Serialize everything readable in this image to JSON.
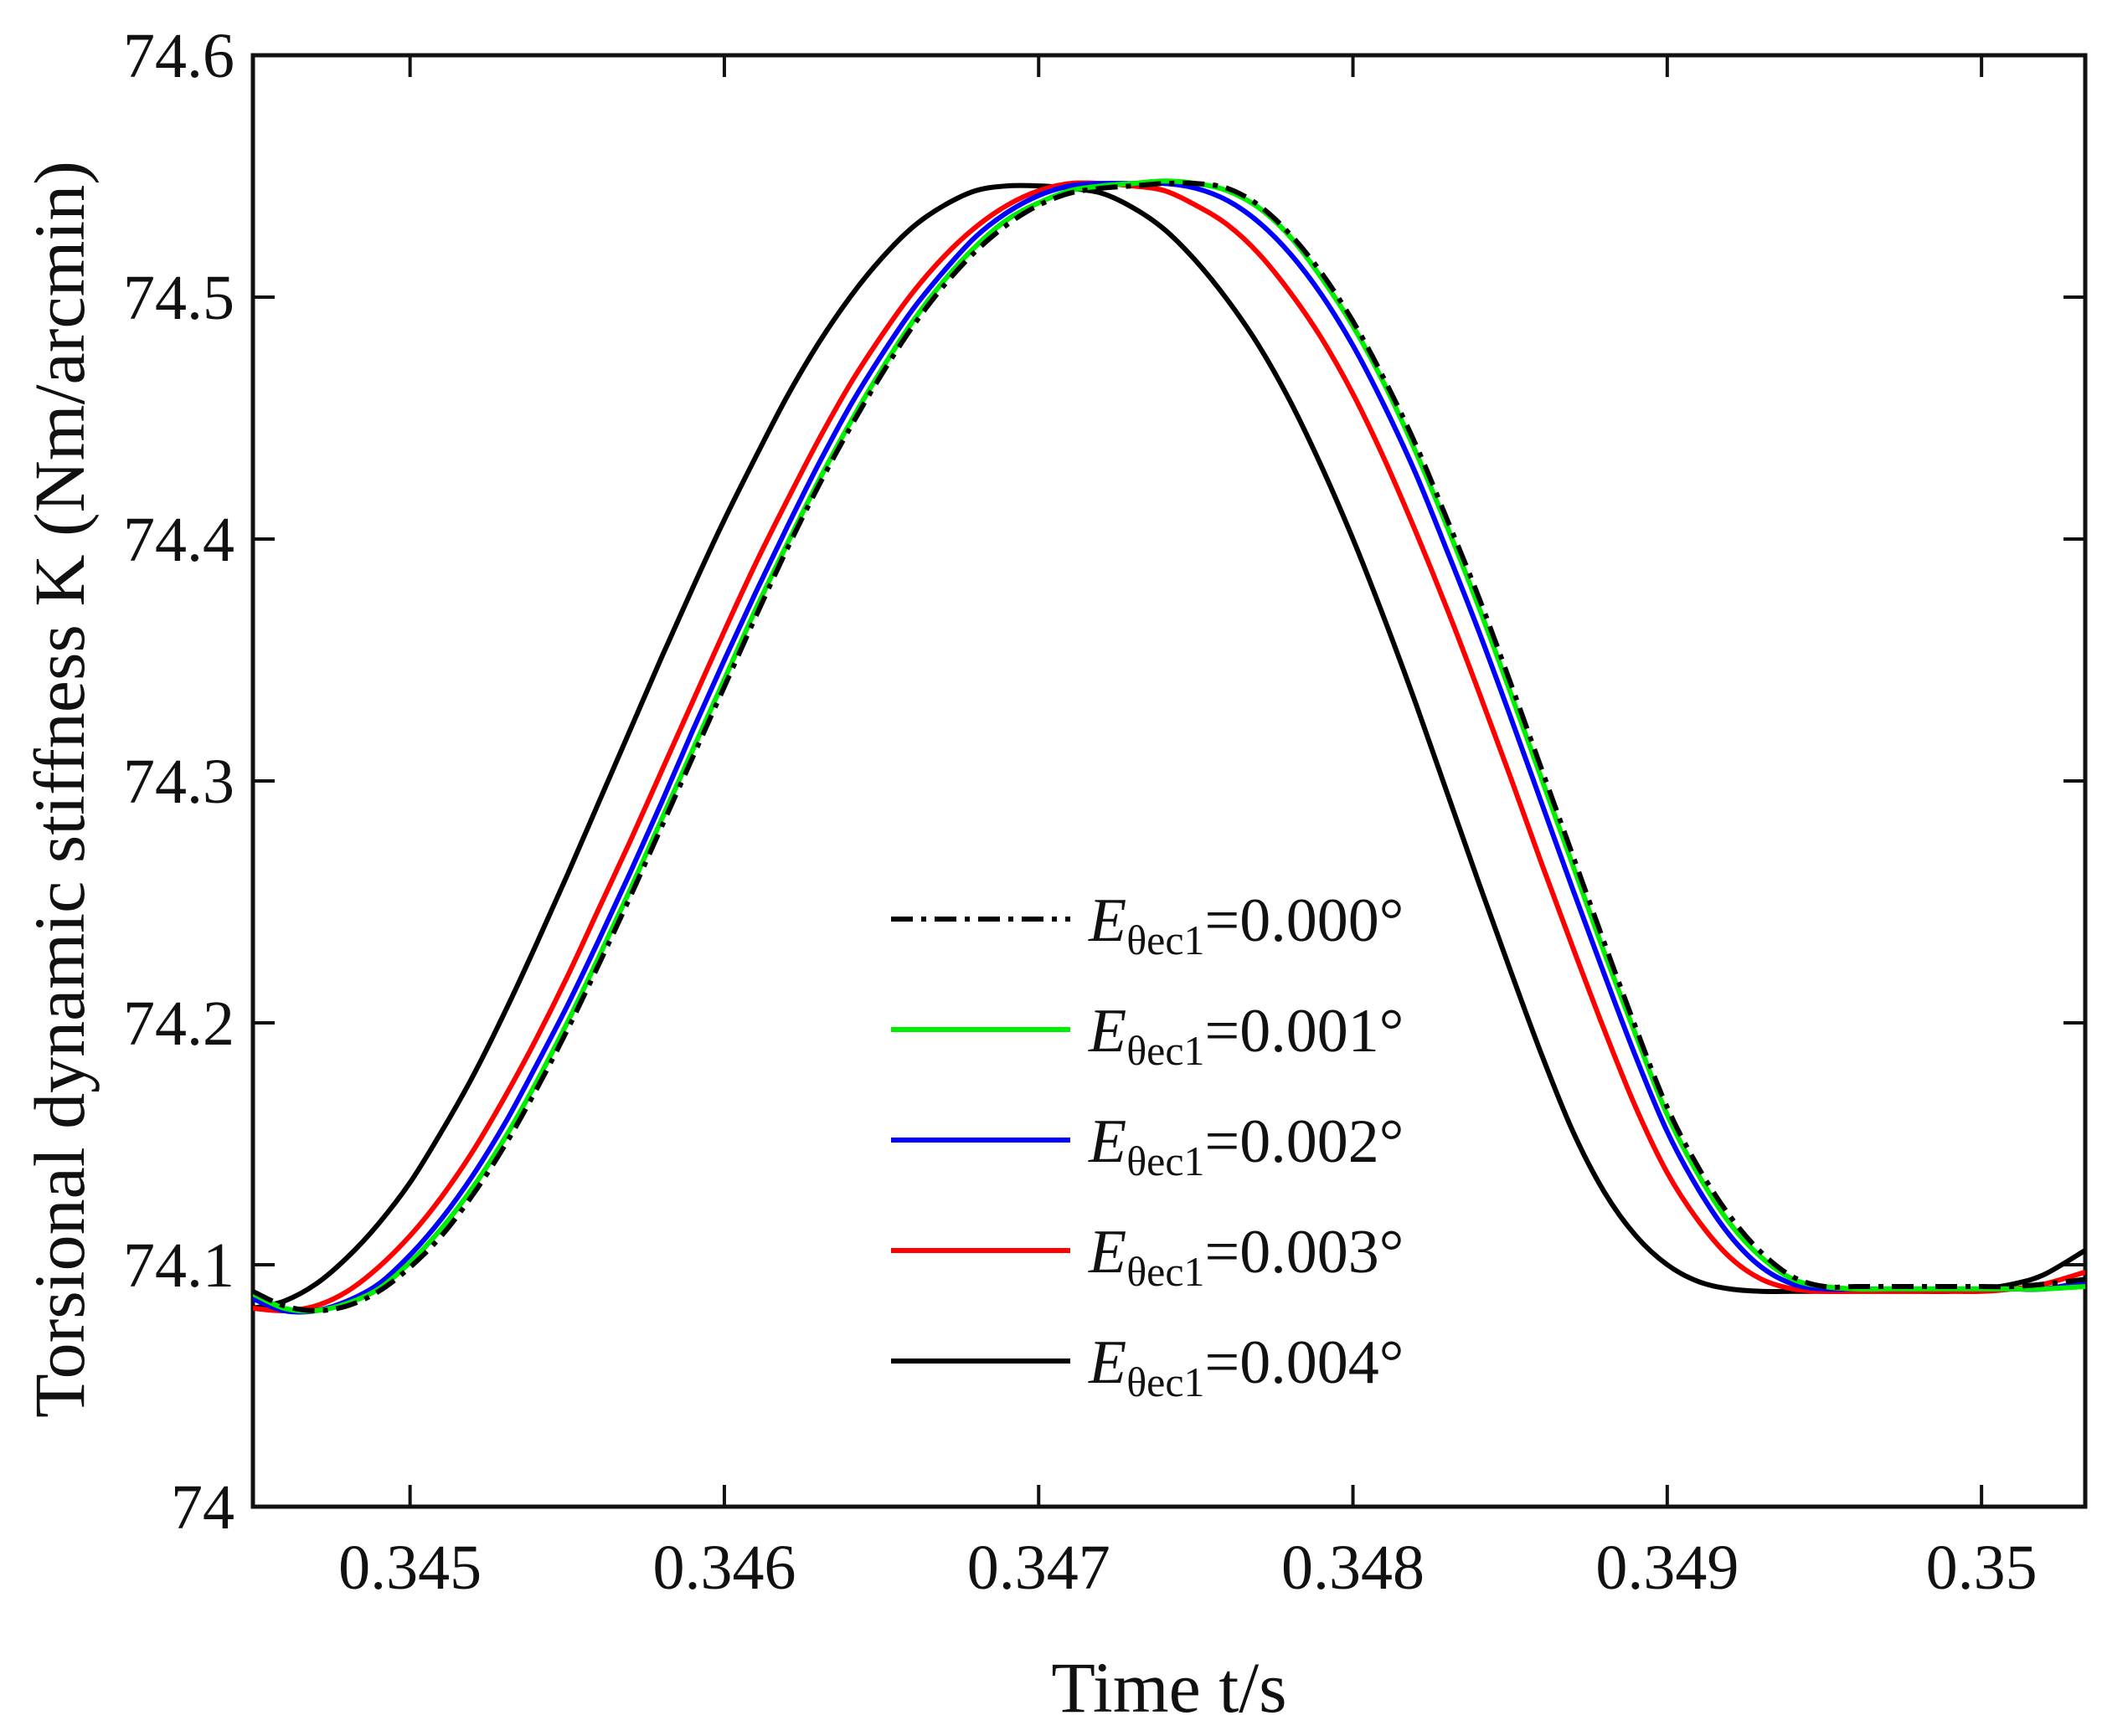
{
  "chart_data": {
    "type": "line",
    "title": "",
    "xlabel": "Time t/s",
    "ylabel": "Torsional dynamic stiffness K (Nm/arcmin)",
    "xlim": [
      0.3445,
      0.35033
    ],
    "ylim": [
      74.0,
      74.6
    ],
    "xticks": [
      0.345,
      0.346,
      0.347,
      0.348,
      0.349,
      0.35
    ],
    "xtick_labels": [
      "0.345",
      "0.346",
      "0.347",
      "0.348",
      "0.349",
      "0.35"
    ],
    "yticks": [
      74.0,
      74.1,
      74.2,
      74.3,
      74.4,
      74.5,
      74.6
    ],
    "ytick_labels": [
      "74",
      "74.1",
      "74.2",
      "74.3",
      "74.4",
      "74.5",
      "74.6"
    ],
    "grid": false,
    "legend_position": "center-right",
    "series": [
      {
        "name": "Eθec1=0.000°",
        "legend_main": "E",
        "legend_sub": "θec1",
        "legend_value": "=0.000°",
        "color": "#000000",
        "dash": "dashdot",
        "x": [
          0.3445,
          0.3446,
          0.3447,
          0.3448,
          0.3449,
          0.345,
          0.3451,
          0.3452,
          0.3453,
          0.3454,
          0.3455,
          0.3456,
          0.3457,
          0.3458,
          0.3459,
          0.346,
          0.3461,
          0.3462,
          0.3463,
          0.3464,
          0.3465,
          0.3466,
          0.3467,
          0.3468,
          0.3469,
          0.347,
          0.3471,
          0.3472,
          0.3473,
          0.3474,
          0.3475,
          0.3476,
          0.3477,
          0.3478,
          0.3479,
          0.348,
          0.3481,
          0.3482,
          0.3483,
          0.3484,
          0.3485,
          0.3486,
          0.3487,
          0.3488,
          0.3489,
          0.349,
          0.3491,
          0.3492,
          0.3493,
          0.3494,
          0.3495,
          0.3496,
          0.3497,
          0.3498,
          0.3499,
          0.35,
          0.3501,
          0.3502,
          0.35033
        ],
        "y": [
          74.089,
          74.083,
          74.081,
          74.083,
          74.089,
          74.099,
          74.112,
          74.129,
          74.149,
          74.172,
          74.197,
          74.224,
          74.252,
          74.281,
          74.31,
          74.339,
          74.368,
          74.396,
          74.422,
          74.446,
          74.468,
          74.488,
          74.505,
          74.519,
          74.53,
          74.538,
          74.543,
          74.545,
          74.546,
          74.547,
          74.547,
          74.545,
          74.538,
          74.526,
          74.51,
          74.49,
          74.466,
          74.439,
          74.408,
          74.376,
          74.341,
          74.305,
          74.269,
          74.233,
          74.198,
          74.165,
          74.14,
          74.12,
          74.105,
          74.095,
          74.091,
          74.091,
          74.091,
          74.091,
          74.091,
          74.091,
          74.091,
          74.092,
          74.094
        ]
      },
      {
        "name": "Eθec1=0.001°",
        "legend_main": "E",
        "legend_sub": "θec1",
        "legend_value": "=0.001°",
        "color": "#00ee00",
        "dash": "solid",
        "x": [
          0.3445,
          0.3446,
          0.3447,
          0.3448,
          0.3449,
          0.345,
          0.3451,
          0.3452,
          0.3453,
          0.3454,
          0.3455,
          0.3456,
          0.3457,
          0.3458,
          0.3459,
          0.346,
          0.3461,
          0.3462,
          0.3463,
          0.3464,
          0.3465,
          0.3466,
          0.3467,
          0.3468,
          0.3469,
          0.347,
          0.3471,
          0.3472,
          0.3473,
          0.3474,
          0.3475,
          0.3476,
          0.3477,
          0.3478,
          0.3479,
          0.348,
          0.3481,
          0.3482,
          0.3483,
          0.3484,
          0.3485,
          0.3486,
          0.3487,
          0.3488,
          0.3489,
          0.349,
          0.3491,
          0.3492,
          0.3493,
          0.3494,
          0.3495,
          0.3496,
          0.3497,
          0.3498,
          0.3499,
          0.35,
          0.3501,
          0.3502,
          0.35033
        ],
        "y": [
          74.088,
          74.082,
          74.081,
          74.084,
          74.09,
          74.101,
          74.115,
          74.132,
          74.152,
          74.175,
          74.2,
          74.227,
          74.255,
          74.284,
          74.313,
          74.342,
          74.371,
          74.398,
          74.424,
          74.448,
          74.47,
          74.49,
          74.507,
          74.521,
          74.532,
          74.539,
          74.544,
          74.546,
          74.547,
          74.548,
          74.547,
          74.544,
          74.537,
          74.525,
          74.508,
          74.488,
          74.464,
          74.436,
          74.405,
          74.372,
          74.337,
          74.301,
          74.265,
          74.229,
          74.195,
          74.162,
          74.137,
          74.117,
          74.103,
          74.094,
          74.091,
          74.09,
          74.09,
          74.09,
          74.09,
          74.09,
          74.09,
          74.09,
          74.091
        ]
      },
      {
        "name": "Eθec1=0.002°",
        "legend_main": "E",
        "legend_sub": "θec1",
        "legend_value": "=0.002°",
        "color": "#0000ff",
        "dash": "solid",
        "x": [
          0.3445,
          0.3446,
          0.3447,
          0.3448,
          0.3449,
          0.345,
          0.3451,
          0.3452,
          0.3453,
          0.3454,
          0.3455,
          0.3456,
          0.3457,
          0.3458,
          0.3459,
          0.346,
          0.3461,
          0.3462,
          0.3463,
          0.3464,
          0.3465,
          0.3466,
          0.3467,
          0.3468,
          0.3469,
          0.347,
          0.3471,
          0.3472,
          0.3473,
          0.3474,
          0.3475,
          0.3476,
          0.3477,
          0.3478,
          0.3479,
          0.348,
          0.3481,
          0.3482,
          0.3483,
          0.3484,
          0.3485,
          0.3486,
          0.3487,
          0.3488,
          0.3489,
          0.349,
          0.3491,
          0.3492,
          0.3493,
          0.3494,
          0.3495,
          0.3496,
          0.3497,
          0.3498,
          0.3499,
          0.35,
          0.3501,
          0.3502,
          0.35033
        ],
        "y": [
          74.086,
          74.081,
          74.081,
          74.085,
          74.092,
          74.104,
          74.119,
          74.137,
          74.158,
          74.182,
          74.207,
          74.234,
          74.262,
          74.291,
          74.321,
          74.35,
          74.378,
          74.405,
          74.431,
          74.455,
          74.476,
          74.495,
          74.511,
          74.525,
          74.535,
          74.542,
          74.546,
          74.547,
          74.547,
          74.547,
          74.545,
          74.54,
          74.531,
          74.518,
          74.501,
          74.48,
          74.455,
          74.427,
          74.395,
          74.362,
          74.327,
          74.291,
          74.255,
          74.22,
          74.186,
          74.155,
          74.131,
          74.112,
          74.099,
          74.092,
          74.09,
          74.09,
          74.09,
          74.09,
          74.09,
          74.09,
          74.09,
          74.09,
          74.093
        ]
      },
      {
        "name": "Eθec1=0.003°",
        "legend_main": "E",
        "legend_sub": "θec1",
        "legend_value": "=0.003°",
        "color": "#ff0000",
        "dash": "solid",
        "x": [
          0.3445,
          0.3446,
          0.3447,
          0.3448,
          0.3449,
          0.345,
          0.3451,
          0.3452,
          0.3453,
          0.3454,
          0.3455,
          0.3456,
          0.3457,
          0.3458,
          0.3459,
          0.346,
          0.3461,
          0.3462,
          0.3463,
          0.3464,
          0.3465,
          0.3466,
          0.3467,
          0.3468,
          0.3469,
          0.347,
          0.3471,
          0.3472,
          0.3473,
          0.3474,
          0.3475,
          0.3476,
          0.3477,
          0.3478,
          0.3479,
          0.348,
          0.3481,
          0.3482,
          0.3483,
          0.3484,
          0.3485,
          0.3486,
          0.3487,
          0.3488,
          0.3489,
          0.349,
          0.3491,
          0.3492,
          0.3493,
          0.3494,
          0.3495,
          0.3496,
          0.3497,
          0.3498,
          0.3499,
          0.35,
          0.3501,
          0.3502,
          0.35033
        ],
        "y": [
          74.082,
          74.081,
          74.083,
          74.089,
          74.099,
          74.112,
          74.128,
          74.147,
          74.169,
          74.193,
          74.219,
          74.247,
          74.275,
          74.304,
          74.333,
          74.362,
          74.39,
          74.416,
          74.441,
          74.464,
          74.484,
          74.502,
          74.517,
          74.529,
          74.538,
          74.544,
          74.547,
          74.547,
          74.546,
          74.544,
          74.538,
          74.53,
          74.518,
          74.502,
          74.483,
          74.46,
          74.433,
          74.403,
          74.371,
          74.337,
          74.302,
          74.266,
          74.231,
          74.197,
          74.165,
          74.138,
          74.118,
          74.103,
          74.094,
          74.09,
          74.089,
          74.089,
          74.089,
          74.089,
          74.089,
          74.089,
          74.09,
          74.092,
          74.097
        ]
      },
      {
        "name": "Eθec1=0.004°",
        "legend_main": "E",
        "legend_sub": "θec1",
        "legend_value": "=0.004°",
        "color": "#000000",
        "dash": "solid",
        "x": [
          0.3445,
          0.3446,
          0.3447,
          0.3448,
          0.3449,
          0.345,
          0.3451,
          0.3452,
          0.3453,
          0.3454,
          0.3455,
          0.3456,
          0.3457,
          0.3458,
          0.3459,
          0.346,
          0.3461,
          0.3462,
          0.3463,
          0.3464,
          0.3465,
          0.3466,
          0.3467,
          0.3468,
          0.3469,
          0.347,
          0.3471,
          0.3472,
          0.3473,
          0.3474,
          0.3475,
          0.3476,
          0.3477,
          0.3478,
          0.3479,
          0.348,
          0.3481,
          0.3482,
          0.3483,
          0.3484,
          0.3485,
          0.3486,
          0.3487,
          0.3488,
          0.3489,
          0.349,
          0.3491,
          0.3492,
          0.3493,
          0.3494,
          0.3495,
          0.3496,
          0.3497,
          0.3498,
          0.3499,
          0.35,
          0.3501,
          0.3502,
          0.35033
        ],
        "y": [
          74.082,
          74.085,
          74.092,
          74.103,
          74.117,
          74.134,
          74.155,
          74.178,
          74.204,
          74.232,
          74.261,
          74.291,
          74.321,
          74.351,
          74.38,
          74.408,
          74.434,
          74.459,
          74.481,
          74.5,
          74.516,
          74.529,
          74.538,
          74.544,
          74.546,
          74.546,
          74.545,
          74.543,
          74.537,
          74.528,
          74.515,
          74.499,
          74.48,
          74.457,
          74.43,
          74.4,
          74.367,
          74.332,
          74.295,
          74.258,
          74.222,
          74.187,
          74.155,
          74.13,
          74.112,
          74.1,
          74.093,
          74.09,
          74.089,
          74.089,
          74.089,
          74.089,
          74.089,
          74.089,
          74.089,
          74.09,
          74.092,
          74.096,
          74.106
        ]
      }
    ]
  }
}
